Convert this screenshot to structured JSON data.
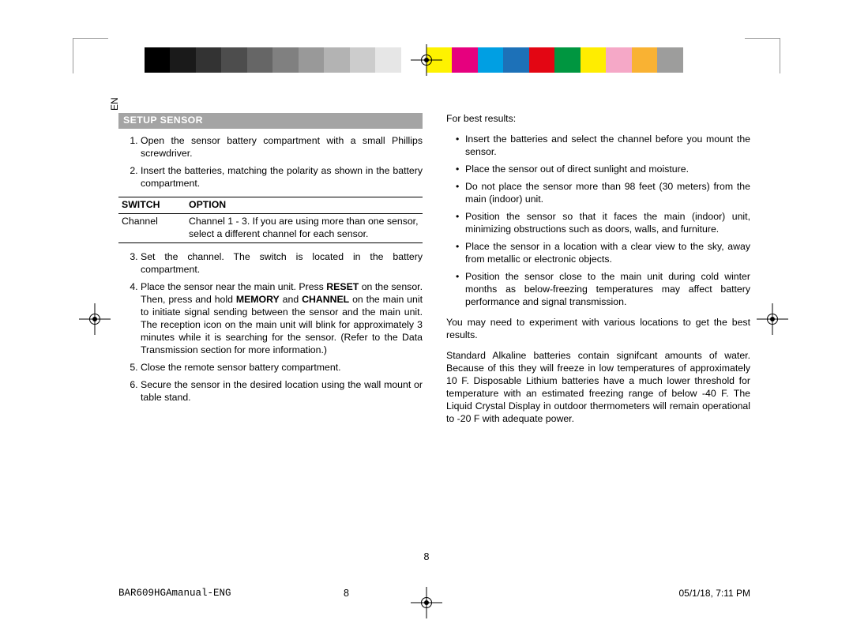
{
  "colorBar": [
    "#000000",
    "#1a1a1a",
    "#333333",
    "#4d4d4d",
    "#666666",
    "#808080",
    "#999999",
    "#b3b3b3",
    "#cccccc",
    "#e6e6e6",
    "#ffffff",
    "#fef200",
    "#e6007e",
    "#009fe3",
    "#1d71b8",
    "#e30613",
    "#009640",
    "#ffed00",
    "#f5a8c7",
    "#f9b233",
    "#9d9d9c",
    "#ffffff"
  ],
  "langBadge": "EN",
  "sectionHeader": "SETUP SENSOR",
  "list": {
    "i1": "Open the sensor battery compartment with a small Phillips screwdriver.",
    "i2": "Insert the batteries, matching the polarity as shown in the battery compartment.",
    "i3": "Set the channel. The switch is located in the battery compartment.",
    "i4a": "Place the sensor near the main unit. Press ",
    "i4b": "RESET",
    "i4c": " on the sensor. Then, press and hold ",
    "i4d": "MEMORY",
    "i4e": " and ",
    "i4f": "CHANNEL",
    "i4g": " on the main unit to initiate signal sending between the sensor and the main unit. The reception icon on the main unit will blink for approximately 3 minutes while it is searching for the sensor. (Refer to the Data Transmission section for more information.)",
    "i5": "Close the remote sensor battery compartment.",
    "i6": "Secure the sensor in the desired location using the wall mount or table stand."
  },
  "table": {
    "h1": "SWITCH",
    "h2": "OPTION",
    "r1c1": "Channel",
    "r1c2": "Channel 1 - 3. If you are using more than one sensor, select a different channel for each sensor."
  },
  "col2": {
    "intro": "For best results:",
    "b1": "Insert the batteries and select the channel before you mount the sensor.",
    "b2": "Place the sensor out of direct sunlight and moisture.",
    "b3": "Do not place the sensor more than 98 feet  (30 meters) from the main (indoor) unit.",
    "b4": "Position the sensor so that it faces the main (indoor) unit, minimizing obstructions such as doors, walls, and furniture.",
    "b5": "Place the sensor in a location with a clear view to the sky, away from metallic or electronic objects.",
    "b6": "Position the sensor close to the main unit during cold winter months as below-freezing temperatures may affect battery performance and signal transmission.",
    "p2": "You may need to experiment with various locations to get the best results.",
    "p3": "Standard Alkaline batteries contain signifcant amounts of water. Because of this they will freeze in low temperatures of approximately 10 F. Disposable Lithium batteries have a much lower threshold for temperature with an estimated freezing range of below -40 F. The Liquid Crystal Display in outdoor thermometers will remain operational to -20 F with adequate power."
  },
  "pageNumBody": "8",
  "footer": {
    "file": "BAR609HGAmanual-ENG",
    "page": "8",
    "date": "05/1/18, 7:11 PM"
  }
}
